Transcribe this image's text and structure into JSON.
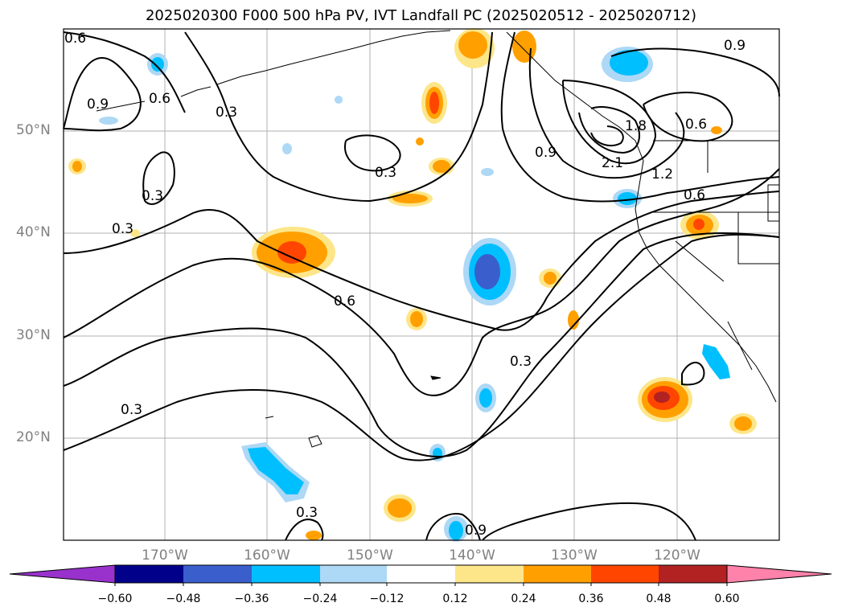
{
  "title": "2025020300 F000 500 hPa PV, IVT Landfall PC (2025020512 - 2025020712)",
  "map": {
    "lat_labels": [
      "50°N",
      "40°N",
      "30°N",
      "20°N"
    ],
    "lon_labels": [
      "170°W",
      "160°W",
      "150°W",
      "140°W",
      "130°W",
      "120°W"
    ],
    "contour_labels": [
      "0.6",
      "0.9",
      "0.6",
      "0.3",
      "0.3",
      "0.3",
      "0.3",
      "0.6",
      "0.3",
      "0.3",
      "0.3",
      "0.9",
      "0.9",
      "0.6",
      "1.2",
      "0.6",
      "2.1",
      "1.8",
      "0.9"
    ]
  },
  "colorbar": {
    "ticks": [
      "−0.60",
      "−0.48",
      "−0.36",
      "−0.24",
      "−0.12",
      "0.12",
      "0.24",
      "0.36",
      "0.48",
      "0.60"
    ],
    "colors": [
      "#9932cc",
      "#00008b",
      "#3a5fcd",
      "#00bfff",
      "#add8f6",
      "#ffffff",
      "#fde68a",
      "#ffa000",
      "#ff4500",
      "#b22222",
      "#ff82ab"
    ]
  }
}
